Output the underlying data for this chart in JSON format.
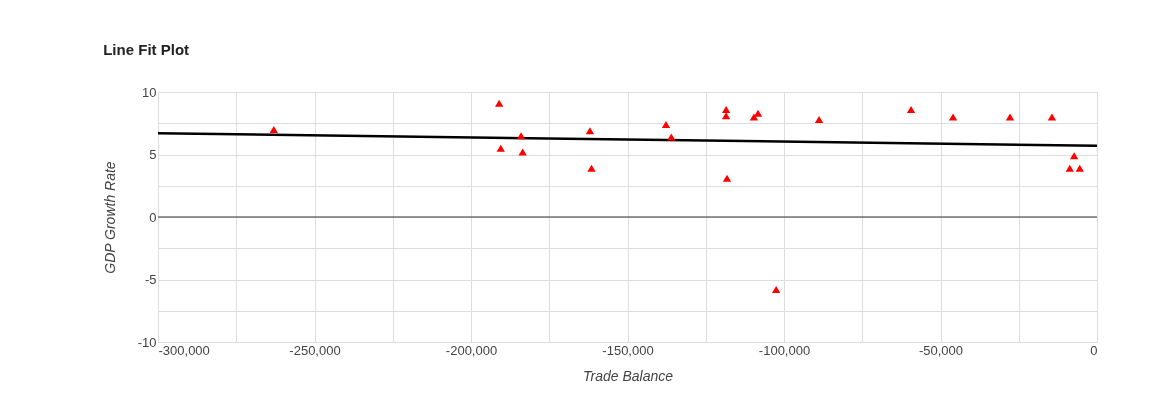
{
  "chart_data": {
    "type": "scatter",
    "title": "Line Fit Plot",
    "xlabel": "Trade Balance",
    "ylabel": "GDP Growth Rate",
    "xlim": [
      -300000,
      0
    ],
    "ylim": [
      -10,
      10
    ],
    "xticks": [
      {
        "value": -300000,
        "label": "-300,000"
      },
      {
        "value": -275000,
        "label": null
      },
      {
        "value": -250000,
        "label": "-250,000"
      },
      {
        "value": -225000,
        "label": null
      },
      {
        "value": -200000,
        "label": "-200,000"
      },
      {
        "value": -175000,
        "label": null
      },
      {
        "value": -150000,
        "label": "-150,000"
      },
      {
        "value": -125000,
        "label": null
      },
      {
        "value": -100000,
        "label": "-100,000"
      },
      {
        "value": -75000,
        "label": null
      },
      {
        "value": -50000,
        "label": "-50,000"
      },
      {
        "value": -25000,
        "label": null
      },
      0
    ],
    "yticks": [
      -10,
      {
        "value": -7.5,
        "label": null
      },
      -5,
      {
        "value": -2.5,
        "label": null
      },
      0,
      {
        "value": 2.5,
        "label": null
      },
      5,
      {
        "value": 7.5,
        "label": null
      },
      10
    ],
    "grid": true,
    "marker": "triangle",
    "ref_lines": [
      {
        "axis": "y",
        "value": 0,
        "color": "#333333"
      }
    ],
    "series": [
      {
        "color": "#ff0000",
        "x": [
          -263000,
          -191000,
          -190500,
          -184000,
          -183500,
          -162000,
          -161500,
          -137700,
          -136000,
          -118500,
          -118500,
          -118200,
          -109600,
          -108300,
          -102500,
          -88800,
          -59400,
          -46000,
          -27800,
          -14400,
          -7300,
          -8700,
          -5500
        ],
        "values": [
          7.0,
          9.1,
          5.5,
          6.5,
          5.2,
          6.9,
          3.9,
          7.4,
          6.4,
          8.6,
          8.1,
          3.1,
          8.0,
          8.3,
          -5.8,
          7.8,
          8.6,
          8.0,
          8.0,
          8.0,
          4.9,
          3.9,
          3.9
        ]
      },
      {
        "type": "line",
        "color": "#000000",
        "marker": "none",
        "line_style": "solid",
        "x": [
          -300000,
          0
        ],
        "values": [
          6.7,
          5.7
        ]
      }
    ]
  }
}
